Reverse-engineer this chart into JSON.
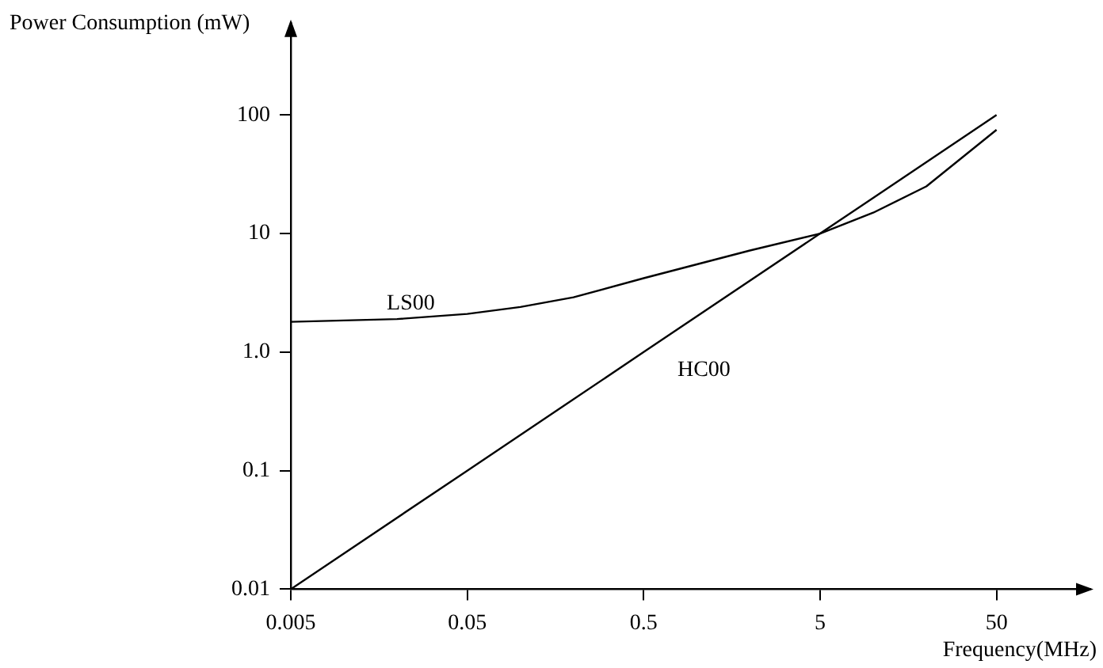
{
  "chart_data": {
    "type": "line",
    "ylabel": "Power Consumption (mW)",
    "xlabel": "Frequency(MHz)",
    "log": "xy",
    "grid": false,
    "legend": false,
    "marker": "none",
    "line_style": "solid",
    "xlim": [
      0.005,
      170
    ],
    "xticks": [
      0.005,
      0.05,
      0.5,
      5,
      50
    ],
    "ylim": [
      0.01,
      600
    ],
    "yticks": [
      0.01,
      0.1,
      {
        "value": 1,
        "label": "1.0"
      },
      10,
      100
    ],
    "series": [
      {
        "name": "LS00",
        "color": "#000000",
        "x": [
          0.005,
          0.01,
          0.02,
          0.05,
          0.1,
          0.2,
          0.5,
          1,
          2,
          5,
          10,
          20,
          50
        ],
        "values": [
          1.8,
          1.85,
          1.9,
          2.1,
          2.4,
          2.9,
          4.2,
          5.5,
          7.2,
          10,
          15,
          25,
          75
        ]
      },
      {
        "name": "HC00",
        "color": "#000000",
        "x": [
          0.005,
          0.05,
          0.5,
          5,
          50
        ],
        "values": [
          0.01,
          0.1,
          1,
          10,
          100
        ]
      }
    ]
  }
}
